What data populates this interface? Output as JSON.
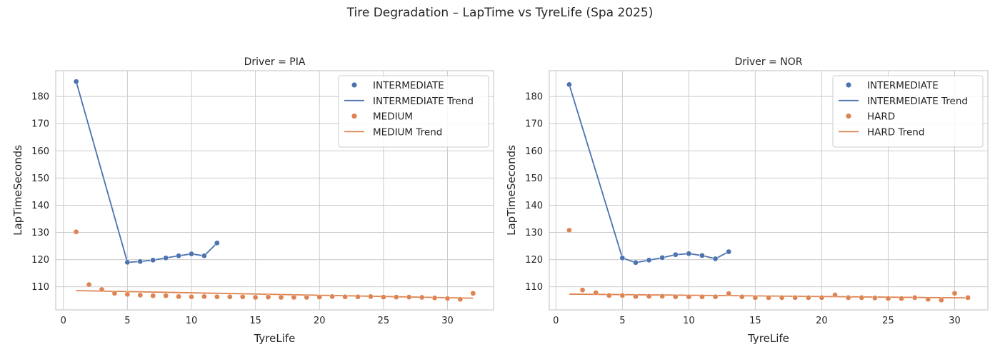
{
  "title": "Tire Degradation – LapTime vs TyreLife (Spa 2025)",
  "colors": {
    "INTERMEDIATE": "#4c72b0",
    "MEDIUM": "#dd8452",
    "HARD": "#dd8452"
  },
  "chart_data": [
    {
      "type": "scatter",
      "title": "Driver = PIA",
      "xlabel": "TyreLife",
      "ylabel": "LapTimeSeconds",
      "xlim": [
        -0.6,
        33.6
      ],
      "ylim": [
        101.5,
        189.5
      ],
      "xticks": [
        0,
        5,
        10,
        15,
        20,
        25,
        30
      ],
      "yticks": [
        110,
        120,
        130,
        140,
        150,
        160,
        170,
        180
      ],
      "grid": true,
      "legend_position": "top-right",
      "series": [
        {
          "name": "INTERMEDIATE",
          "compound": "INTERMEDIATE",
          "kind": "scatter",
          "x": [
            1,
            5,
            6,
            7,
            8,
            9,
            10,
            11,
            12
          ],
          "y": [
            185.5,
            119.0,
            119.3,
            119.8,
            120.6,
            121.4,
            122.1,
            121.4,
            126.1
          ]
        },
        {
          "name": "INTERMEDIATE Trend",
          "compound": "INTERMEDIATE",
          "kind": "line",
          "x": [
            1,
            5,
            6,
            7,
            8,
            9,
            10,
            11,
            12
          ],
          "y": [
            185.5,
            119.0,
            119.3,
            119.8,
            120.6,
            121.4,
            122.1,
            121.4,
            126.1
          ]
        },
        {
          "name": "MEDIUM",
          "compound": "MEDIUM",
          "kind": "scatter",
          "x": [
            1,
            2,
            3,
            4,
            5,
            6,
            7,
            8,
            9,
            10,
            11,
            12,
            13,
            14,
            15,
            16,
            17,
            18,
            19,
            20,
            21,
            22,
            23,
            24,
            25,
            26,
            27,
            28,
            29,
            30,
            31,
            32
          ],
          "y": [
            130.2,
            110.8,
            109.0,
            107.6,
            107.2,
            106.9,
            106.7,
            106.7,
            106.4,
            106.3,
            106.4,
            106.3,
            106.3,
            106.3,
            106.1,
            106.2,
            106.1,
            106.1,
            106.1,
            106.2,
            106.4,
            106.3,
            106.3,
            106.4,
            106.2,
            106.2,
            106.2,
            106.1,
            105.9,
            105.7,
            105.4,
            107.6
          ]
        },
        {
          "name": "MEDIUM Trend",
          "compound": "MEDIUM",
          "kind": "line",
          "x": [
            1,
            32
          ],
          "y": [
            108.6,
            105.8
          ]
        }
      ]
    },
    {
      "type": "scatter",
      "title": "Driver = NOR",
      "xlabel": "TyreLife",
      "ylabel": "LapTimeSeconds",
      "xlim": [
        -0.5,
        32.5
      ],
      "ylim": [
        101.5,
        189.5
      ],
      "xticks": [
        0,
        5,
        10,
        15,
        20,
        25,
        30
      ],
      "yticks": [
        110,
        120,
        130,
        140,
        150,
        160,
        170,
        180
      ],
      "grid": true,
      "legend_position": "top-right",
      "series": [
        {
          "name": "INTERMEDIATE",
          "compound": "INTERMEDIATE",
          "kind": "scatter",
          "x": [
            1,
            5,
            6,
            7,
            8,
            9,
            10,
            11,
            12,
            13
          ],
          "y": [
            184.4,
            120.6,
            118.9,
            119.8,
            120.7,
            121.8,
            122.2,
            121.5,
            120.3,
            122.9
          ]
        },
        {
          "name": "INTERMEDIATE Trend",
          "compound": "INTERMEDIATE",
          "kind": "line",
          "x": [
            1,
            5,
            6,
            7,
            8,
            9,
            10,
            11,
            12,
            13
          ],
          "y": [
            184.4,
            120.6,
            118.9,
            119.8,
            120.7,
            121.8,
            122.2,
            121.5,
            120.3,
            122.9
          ]
        },
        {
          "name": "HARD",
          "compound": "HARD",
          "kind": "scatter",
          "x": [
            1,
            2,
            3,
            4,
            5,
            6,
            7,
            8,
            9,
            10,
            11,
            12,
            13,
            14,
            15,
            16,
            17,
            18,
            19,
            20,
            21,
            22,
            23,
            24,
            25,
            26,
            27,
            28,
            29,
            30,
            31
          ],
          "y": [
            130.8,
            108.8,
            107.8,
            106.8,
            106.8,
            106.4,
            106.5,
            106.5,
            106.3,
            106.3,
            106.3,
            106.3,
            107.5,
            106.3,
            106.0,
            106.0,
            106.0,
            106.0,
            106.0,
            106.0,
            107.0,
            106.0,
            106.0,
            105.9,
            105.7,
            105.7,
            106.0,
            105.4,
            105.1,
            107.6,
            106.0
          ]
        },
        {
          "name": "HARD Trend",
          "compound": "HARD",
          "kind": "line",
          "x": [
            1,
            31
          ],
          "y": [
            107.3,
            105.9
          ]
        }
      ]
    }
  ]
}
